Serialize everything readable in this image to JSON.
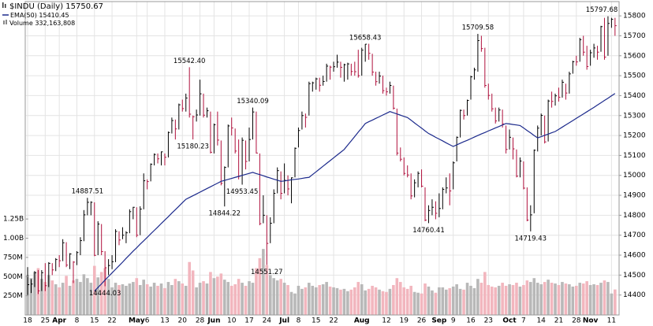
{
  "chart_data": {
    "type": "ohlc",
    "categories": [
      "18",
      null,
      null,
      null,
      null,
      "25",
      null,
      null,
      null,
      "Apr",
      null,
      null,
      null,
      null,
      "8",
      null,
      null,
      null,
      null,
      "15",
      null,
      null,
      null,
      null,
      "22",
      null,
      null,
      null,
      null,
      null,
      null,
      "May",
      null,
      null,
      "6",
      null,
      null,
      null,
      null,
      "13",
      null,
      null,
      null,
      null,
      "20",
      null,
      null,
      null,
      null,
      "28",
      null,
      null,
      null,
      "Jun",
      null,
      null,
      null,
      null,
      "10",
      null,
      null,
      null,
      null,
      "17",
      null,
      null,
      null,
      null,
      "24",
      null,
      null,
      null,
      null,
      "Jul",
      null,
      null,
      null,
      "8",
      null,
      null,
      null,
      null,
      "15",
      null,
      null,
      null,
      null,
      "22",
      null,
      null,
      null,
      null,
      null,
      null,
      null,
      "Aug",
      null,
      null,
      null,
      null,
      null,
      null,
      "12",
      null,
      null,
      null,
      null,
      "19",
      null,
      null,
      null,
      null,
      "26",
      null,
      null,
      null,
      null,
      "Sep",
      null,
      null,
      null,
      "9",
      null,
      null,
      null,
      null,
      "16",
      null,
      null,
      null,
      null,
      "23",
      null,
      null,
      null,
      null,
      null,
      "Oct",
      null,
      null,
      null,
      "7",
      null,
      null,
      null,
      null,
      "14",
      null,
      null,
      null,
      null,
      "21",
      null,
      null,
      null,
      null,
      "28",
      null,
      null,
      null,
      "Nov",
      null,
      null,
      null,
      null,
      null,
      "11",
      null
    ],
    "series": [
      {
        "name": "$INDU (Daily)",
        "up_color": "#000000",
        "down_color": "#b0103c",
        "high": [
          14540,
          14480,
          14520,
          14525,
          14525,
          14560,
          14565,
          14560,
          14585,
          14600,
          14680,
          14665,
          14610,
          14570,
          14620,
          14690,
          14826,
          14887.51,
          14870,
          14865,
          14770,
          14756,
          14620,
          14580,
          14600,
          14730,
          14720,
          14740,
          14720,
          14830,
          14842,
          14840,
          14845,
          15010,
          14980,
          15060,
          15110,
          15110,
          15120,
          15110,
          15220,
          15290,
          15280,
          15360,
          15380,
          15410,
          15542.4,
          15300,
          15330,
          15480,
          15410,
          15340,
          15320,
          15260,
          15320,
          15175,
          15045,
          15255,
          15290,
          15235,
          15180,
          15190,
          15175,
          15240,
          15340.09,
          15320,
          15110,
          14900,
          14800,
          14790,
          14930,
          15040,
          15020,
          15060,
          15000,
          14990,
          15140,
          15240,
          15320,
          15310,
          15470,
          15470,
          15490,
          15490,
          15500,
          15560,
          15550,
          15570,
          15605,
          15570,
          15560,
          15565,
          15560,
          15570,
          15630,
          15640,
          15658.43,
          15660,
          15610,
          15520,
          15520,
          15500,
          15440,
          15470,
          15450,
          15335,
          15140,
          15090,
          15050,
          15010,
          14980,
          15020,
          15030,
          14940,
          14850,
          14880,
          14870,
          14910,
          14940,
          14990,
          15010,
          15070,
          15195,
          15330,
          15330,
          15380,
          15500,
          15540,
          15709.58,
          15700,
          15640,
          15460,
          15410,
          15340,
          15340,
          15330,
          15250,
          15230,
          15190,
          15130,
          15090,
          15070,
          14940,
          14850,
          15130,
          15250,
          15310,
          15300,
          15380,
          15420,
          15410,
          15440,
          15480,
          15460,
          15520,
          15575,
          15600,
          15690,
          15700,
          15650,
          15630,
          15660,
          15650,
          15750,
          15790,
          15797.68,
          15790,
          15790
        ],
        "low": [
          14400,
          14410,
          14440,
          14405,
          14420,
          14420,
          14440,
          14500,
          14520,
          14540,
          14570,
          14540,
          14530,
          14460,
          14550,
          14600,
          14670,
          14800,
          14800,
          14595,
          14600,
          14600,
          14444.03,
          14500,
          14530,
          14565,
          14650,
          14680,
          14660,
          14710,
          14780,
          14690,
          14700,
          14830,
          14930,
          14970,
          15050,
          15060,
          15050,
          15050,
          15090,
          15210,
          15180,
          15230,
          15320,
          15320,
          15290,
          15180.23,
          15270,
          15300,
          15290,
          15290,
          15110,
          15110,
          15150,
          14950,
          14844.22,
          15040,
          15200,
          15110,
          14980,
          14953.45,
          15030,
          15070,
          15180,
          15110,
          14750,
          14760,
          14551.27,
          14660,
          14760,
          14910,
          14880,
          14910,
          14900,
          14860,
          14990,
          15140,
          15230,
          15240,
          15300,
          15420,
          15430,
          15420,
          15450,
          15470,
          15480,
          15520,
          15540,
          15490,
          15470,
          15480,
          15500,
          15500,
          15490,
          15500,
          15570,
          15580,
          15500,
          15450,
          15460,
          15410,
          15400,
          15410,
          15330,
          15100,
          15070,
          15000,
          14990,
          14880,
          14890,
          14940,
          14940,
          14770,
          14760.41,
          14800,
          14780,
          14790,
          14830,
          14910,
          14850,
          14930,
          15070,
          15190,
          15280,
          15300,
          15380,
          15480,
          15520,
          15620,
          15440,
          15380,
          15320,
          15260,
          15270,
          15240,
          15110,
          15130,
          15080,
          14990,
          14990,
          14930,
          14770,
          14719.43,
          14810,
          15120,
          15200,
          15160,
          15170,
          15340,
          15350,
          15370,
          15390,
          15380,
          15410,
          15510,
          15550,
          15570,
          15600,
          15530,
          15550,
          15590,
          15580,
          15620,
          15580,
          15600,
          15740,
          15700
        ],
        "close": [
          14452,
          14455,
          14512,
          14421,
          14512,
          14447,
          14559,
          14526,
          14578,
          14572,
          14662,
          14550,
          14606,
          14565,
          14613,
          14673,
          14802,
          14865,
          14865,
          14599,
          14756,
          14618,
          14537,
          14548,
          14567,
          14719,
          14676,
          14700,
          14712,
          14818,
          14840,
          14700,
          14831,
          14973,
          14969,
          15056,
          15105,
          15083,
          15118,
          15091,
          15215,
          15275,
          15233,
          15354,
          15335,
          15388,
          15307,
          15294,
          15303,
          15409,
          15302,
          15324,
          15116,
          15254,
          15177,
          14960,
          15040,
          15248,
          15238,
          15122,
          14995,
          15176,
          15070,
          15180,
          15318,
          15112,
          14758,
          14800,
          14659,
          14760,
          14910,
          15024,
          14910,
          14975,
          14932,
          14988,
          15136,
          15225,
          15300,
          15291,
          15460,
          15464,
          15484,
          15452,
          15471,
          15548,
          15543,
          15545,
          15568,
          15542,
          15555,
          15559,
          15521,
          15520,
          15500,
          15628,
          15658,
          15612,
          15518,
          15470,
          15498,
          15425,
          15419,
          15451,
          15337,
          15112,
          15081,
          15010,
          15002,
          14897,
          14963,
          15010,
          14946,
          14776,
          14824,
          14840,
          14810,
          14834,
          14930,
          14937,
          14922,
          15063,
          15191,
          15326,
          15300,
          15376,
          15494,
          15529,
          15676,
          15636,
          15451,
          15401,
          15334,
          15273,
          15328,
          15258,
          15130,
          15191,
          15133,
          14996,
          15072,
          14936,
          14776,
          14802,
          15126,
          15237,
          15301,
          15168,
          15373,
          15371,
          15399,
          15392,
          15467,
          15413,
          15509,
          15570,
          15569,
          15680,
          15618,
          15546,
          15615,
          15639,
          15618,
          15746,
          15593,
          15762,
          15783,
          15750.67
        ]
      },
      {
        "name": "EMA(50)",
        "color": "#1c2a8c",
        "values": [
          null,
          null,
          null,
          null,
          null,
          null,
          null,
          null,
          null,
          null,
          null,
          null,
          null,
          null,
          null,
          null,
          null,
          null,
          null,
          14420,
          14438,
          14456,
          14475,
          14493,
          14511,
          14529,
          14547,
          14565,
          14584,
          14602,
          14620,
          14637,
          14655,
          14672,
          14689,
          14707,
          14724,
          14741,
          14759,
          14776,
          14793,
          14811,
          14828,
          14845,
          14863,
          14880,
          14889,
          14898,
          14907,
          14916,
          14925,
          14934,
          14943,
          14952,
          14961,
          14970,
          14975,
          14980,
          14985,
          14990,
          14995,
          15000,
          15005,
          15010,
          15015,
          15009,
          15004,
          14998,
          14992,
          14987,
          14981,
          14976,
          14970,
          14972,
          14975,
          14978,
          14980,
          14982,
          14985,
          14988,
          14990,
          15004,
          15018,
          15032,
          15046,
          15060,
          15074,
          15088,
          15102,
          15116,
          15130,
          15152,
          15173,
          15195,
          15217,
          15238,
          15260,
          15269,
          15277,
          15286,
          15294,
          15303,
          15311,
          15320,
          15314,
          15308,
          15302,
          15296,
          15290,
          15277,
          15263,
          15250,
          15237,
          15223,
          15210,
          15201,
          15191,
          15182,
          15173,
          15163,
          15154,
          15145,
          15153,
          15161,
          15169,
          15176,
          15184,
          15192,
          15200,
          15208,
          15215,
          15223,
          15230,
          15238,
          15245,
          15253,
          15260,
          15258,
          15255,
          15253,
          15250,
          15238,
          15225,
          15213,
          15200,
          15188,
          15194,
          15201,
          15207,
          15214,
          15220,
          15231,
          15242,
          15253,
          15264,
          15275,
          15286,
          15297,
          15308,
          15319,
          15330,
          15341,
          15353,
          15364,
          15376,
          15387,
          15399,
          15410.45
        ]
      },
      {
        "name": "Volume",
        "axis": "y2",
        "up_color": "#b8b8b8",
        "down_color": "#f2b6be",
        "legend_value_label": "332,163,808",
        "values": [
          520,
          480,
          560,
          610,
          470,
          430,
          520,
          450,
          400,
          360,
          420,
          510,
          380,
          450,
          470,
          430,
          530,
          480,
          420,
          640,
          490,
          560,
          610,
          470,
          360,
          420,
          390,
          400,
          380,
          410,
          430,
          480,
          390,
          460,
          400,
          370,
          420,
          380,
          410,
          350,
          430,
          390,
          470,
          440,
          410,
          380,
          690,
          580,
          360,
          420,
          440,
          410,
          560,
          480,
          500,
          540,
          460,
          430,
          380,
          400,
          470,
          420,
          380,
          440,
          420,
          610,
          740,
          860,
          650,
          520,
          480,
          450,
          470,
          420,
          390,
          300,
          280,
          380,
          340,
          360,
          420,
          380,
          360,
          390,
          400,
          430,
          370,
          360,
          350,
          330,
          340,
          310,
          330,
          360,
          430,
          400,
          320,
          340,
          380,
          360,
          330,
          310,
          300,
          340,
          390,
          480,
          430,
          360,
          340,
          380,
          300,
          290,
          280,
          410,
          370,
          320,
          290,
          360,
          360,
          330,
          350,
          370,
          400,
          340,
          330,
          420,
          380,
          350,
          470,
          420,
          560,
          390,
          370,
          360,
          380,
          420,
          380,
          400,
          390,
          420,
          370,
          390,
          450,
          430,
          480,
          420,
          400,
          430,
          460,
          420,
          410,
          390,
          430,
          410,
          400,
          370,
          380,
          420,
          410,
          440,
          390,
          400,
          390,
          420,
          450,
          430,
          280,
          332.163808
        ]
      }
    ],
    "ylim": [
      14300,
      15840
    ],
    "yticks": [
      14400,
      14500,
      14600,
      14700,
      14800,
      14900,
      15000,
      15100,
      15200,
      15300,
      15400,
      15500,
      15600,
      15700,
      15800
    ],
    "y2lim": [
      0,
      4000
    ],
    "y2ticks": [
      {
        "value": 250,
        "label": "250M"
      },
      {
        "value": 500,
        "label": "500M"
      },
      {
        "value": 750,
        "label": "750M"
      },
      {
        "value": 1000,
        "label": "1.00B"
      },
      {
        "value": 1250,
        "label": "1.25B"
      }
    ],
    "grid": true,
    "annotations": [
      {
        "value": 14887.51,
        "label": "14887.51"
      },
      {
        "value": 14444.03,
        "label": "14444.03"
      },
      {
        "value": 15542.4,
        "label": "15542.40"
      },
      {
        "value": 15180.23,
        "label": "15180.23"
      },
      {
        "value": 14844.22,
        "label": "14844.22"
      },
      {
        "value": 14953.45,
        "label": "14953.45"
      },
      {
        "value": 15340.09,
        "label": "15340.09"
      },
      {
        "value": 14551.27,
        "label": "14551.27"
      },
      {
        "value": 15658.43,
        "label": "15658.43"
      },
      {
        "value": 14760.41,
        "label": "14760.41"
      },
      {
        "value": 15709.58,
        "label": "15709.58"
      },
      {
        "value": 14719.43,
        "label": "14719.43"
      },
      {
        "value": 15797.68,
        "label": "15797.68"
      }
    ]
  }
}
